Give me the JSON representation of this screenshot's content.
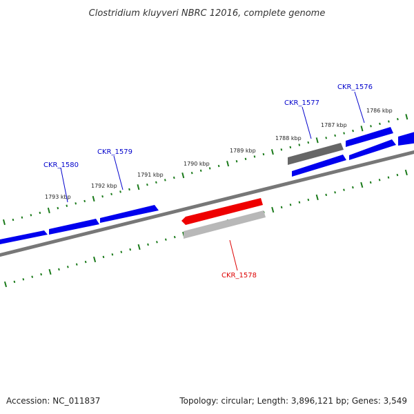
{
  "title": "Clostridium kluyveri NBRC 12016, complete genome",
  "footer": {
    "accession": "Accession: NC_011837",
    "summary": "Topology: circular; Length: 3,896,121 bp; Genes: 3,549"
  },
  "tick_labels": [
    "1786 kbp",
    "1787 kbp",
    "1788 kbp",
    "1789 kbp",
    "1790 kbp",
    "1791 kbp",
    "1792 kbp",
    "1793 kbp"
  ],
  "genes": [
    {
      "label": "CKR_1576",
      "color": "#0000cc"
    },
    {
      "label": "CKR_1577",
      "color": "#0000cc"
    },
    {
      "label": "CKR_1578",
      "color": "#dd0000"
    },
    {
      "label": "CKR_1579",
      "color": "#0000cc"
    },
    {
      "label": "CKR_1580",
      "color": "#0000cc"
    }
  ],
  "colors": {
    "forward_gene": "#0000ee",
    "highlight_gene": "#ee0000",
    "grey_gene": "#666666",
    "light_grey_gene": "#b8b8b8",
    "backbone": "#777777",
    "ticks": "#1a7a1a"
  }
}
